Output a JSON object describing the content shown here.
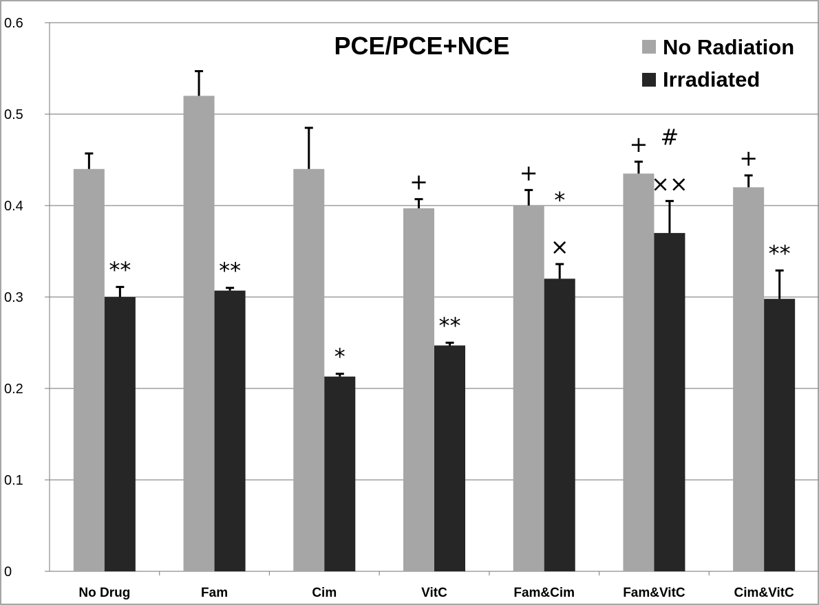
{
  "chart_data": {
    "type": "bar",
    "title": "PCE/PCE+NCE",
    "xlabel": "",
    "ylabel": "",
    "ylim": [
      0,
      0.6
    ],
    "yticks": [
      "0",
      "0.1",
      "0.2",
      "0.3",
      "0.4",
      "0.5",
      "0.6"
    ],
    "grid": true,
    "legend_position": "top-right",
    "categories": [
      "No Drug",
      "Fam",
      "Cim",
      "VitC",
      "Fam&Cim",
      "Fam&VitC",
      "Cim&VitC"
    ],
    "series": [
      {
        "name": "No Radiation",
        "color": "#a6a6a6",
        "values": [
          0.44,
          0.52,
          0.44,
          0.397,
          0.4,
          0.435,
          0.42
        ],
        "error": [
          0.017,
          0.027,
          0.045,
          0.01,
          0.017,
          0.013,
          0.013
        ],
        "annotations": [
          "",
          "",
          "",
          "+",
          "+",
          "+",
          "+"
        ]
      },
      {
        "name": "Irradiated",
        "color": "#262626",
        "values": [
          0.3,
          0.307,
          0.213,
          0.247,
          0.32,
          0.37,
          0.298
        ],
        "error": [
          0.011,
          0.003,
          0.003,
          0.003,
          0.016,
          0.035,
          0.031
        ],
        "annotations": [
          "**",
          "**",
          "*",
          "**",
          "*\n×",
          "#\n××",
          "**"
        ]
      }
    ]
  }
}
